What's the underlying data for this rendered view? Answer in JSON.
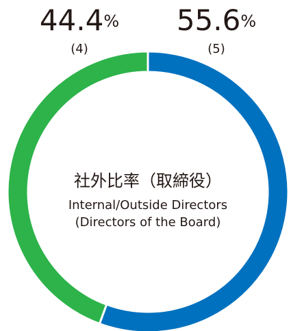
{
  "chart_data": {
    "type": "donut",
    "title": "社外比率（取締役）",
    "subtitle": [
      "Internal/Outside Directors",
      "(Directors of the Board)"
    ],
    "unit": "%",
    "values": [
      55.6,
      44.4
    ],
    "value_labels": [
      "55.6",
      "44.4"
    ],
    "count_labels": [
      "(5)",
      "(4)"
    ],
    "colors": [
      "#0071bf",
      "#2db34a"
    ]
  }
}
